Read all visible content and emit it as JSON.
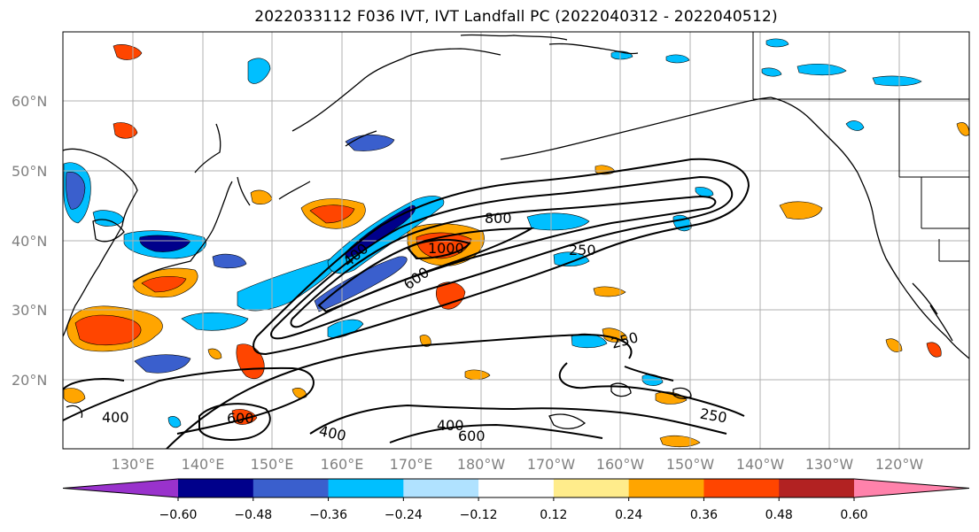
{
  "title": "2022033112 F036 IVT, IVT Landfall PC (2022040312 - 2022040512)",
  "lat_labels": [
    "60°N",
    "50°N",
    "40°N",
    "30°N",
    "20°N"
  ],
  "lon_labels": [
    "130°E",
    "140°E",
    "150°E",
    "160°E",
    "170°E",
    "180°W",
    "170°W",
    "160°W",
    "150°W",
    "140°W",
    "130°W",
    "120°W"
  ],
  "colorbar": {
    "ticks": [
      "−0.60",
      "−0.48",
      "−0.36",
      "−0.24",
      "−0.12",
      "0.12",
      "0.24",
      "0.36",
      "0.48",
      "0.60"
    ],
    "colors": [
      "#9932cc",
      "#00008b",
      "#3a5fcd",
      "#00bfff",
      "#b0e2ff",
      "#ffffff",
      "#ffec8b",
      "#ffa500",
      "#ff4500",
      "#b22222",
      "#ff82ab"
    ]
  },
  "contour_labels": [
    {
      "text": "800"
    },
    {
      "text": "1000"
    },
    {
      "text": "600"
    },
    {
      "text": "400"
    },
    {
      "text": "250"
    },
    {
      "text": "250"
    },
    {
      "text": "250"
    },
    {
      "text": "400"
    },
    {
      "text": "600"
    },
    {
      "text": "400"
    },
    {
      "text": "400"
    },
    {
      "text": "600"
    }
  ],
  "colors": {
    "grid": "#b0b0b0",
    "coast": "#000000",
    "contour": "#000000"
  }
}
